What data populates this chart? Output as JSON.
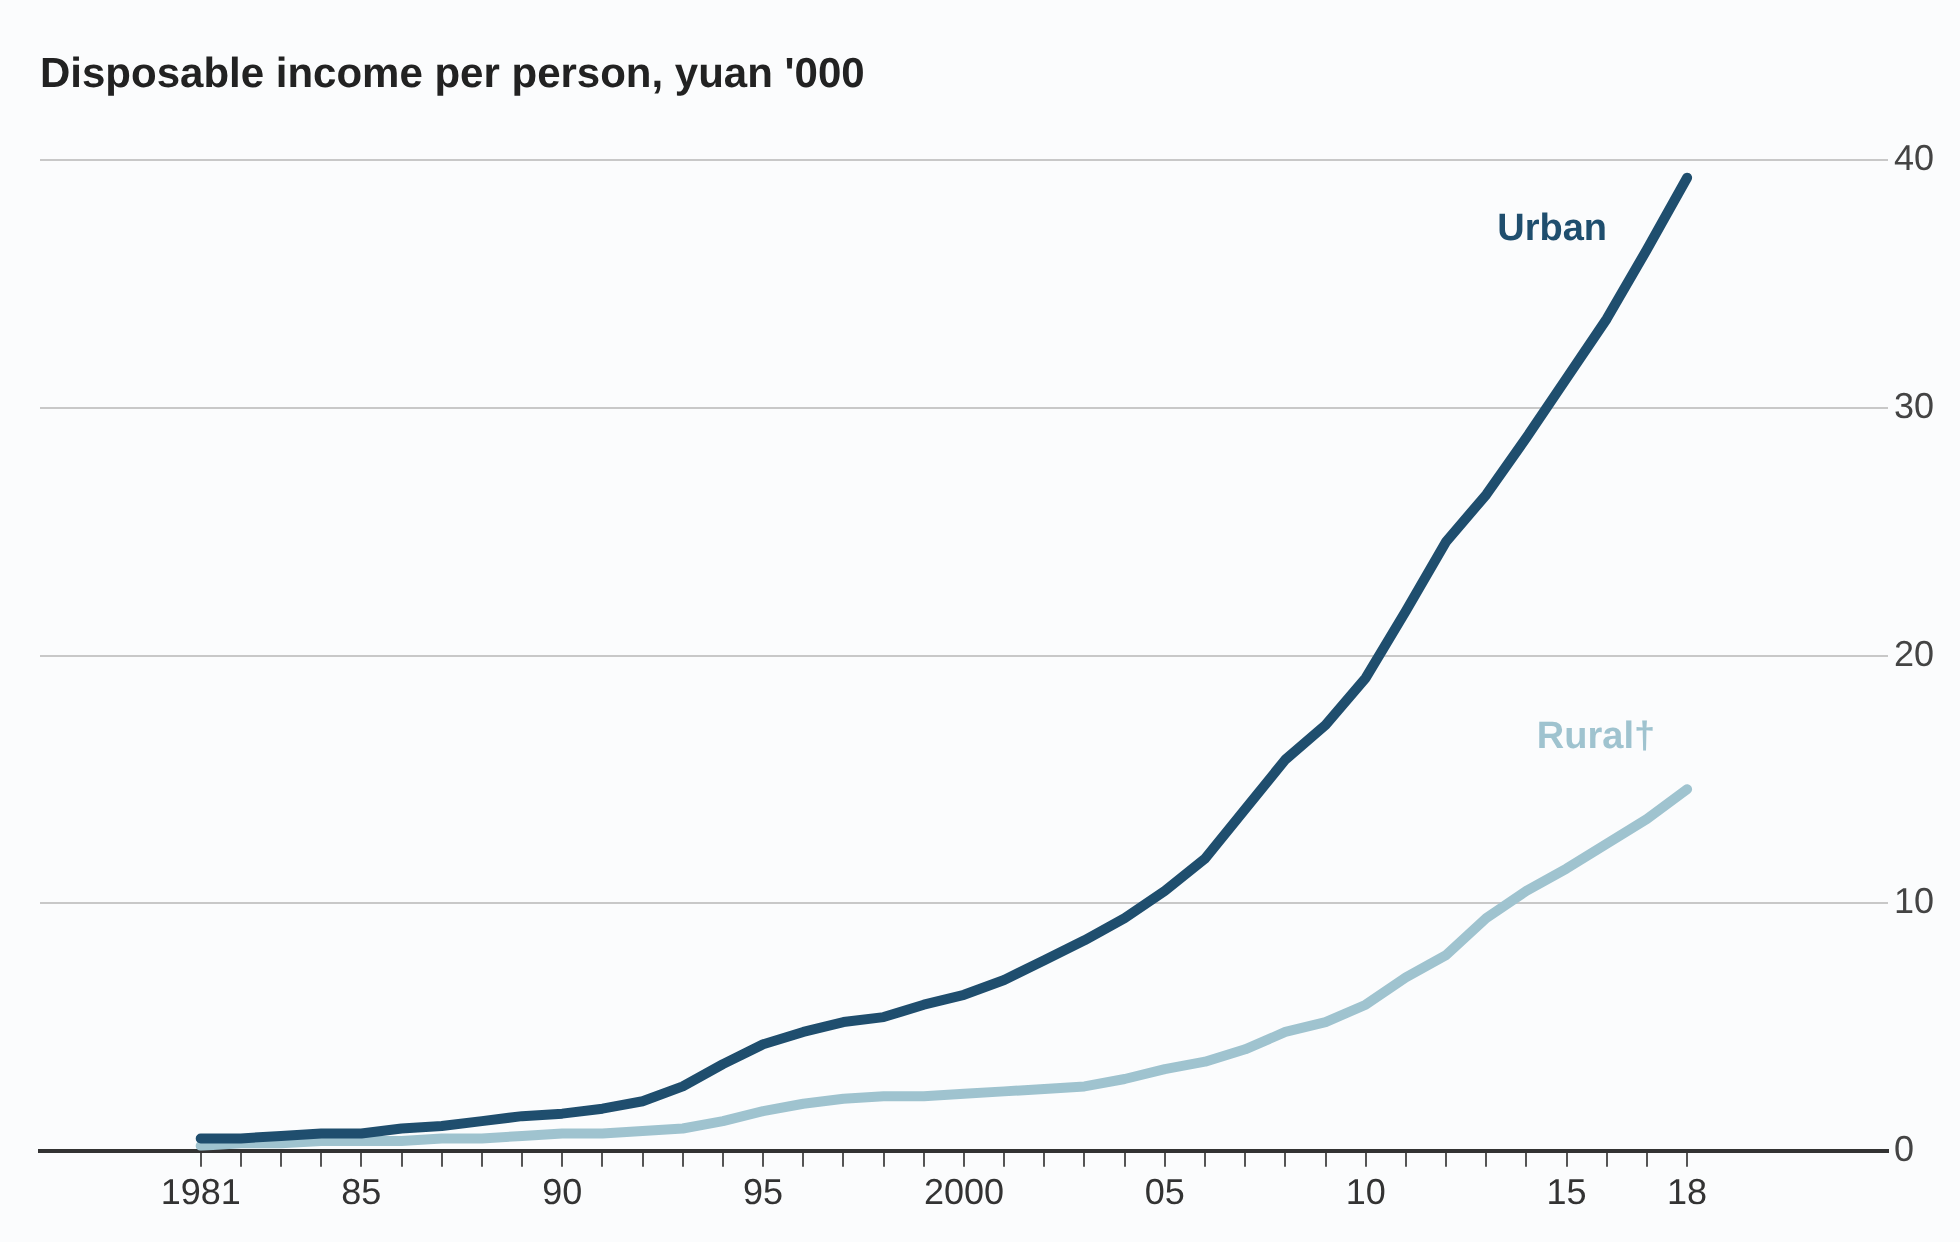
{
  "chart_data": {
    "type": "line",
    "title": "Disposable income per person, yuan '000",
    "x": [
      1981,
      1982,
      1983,
      1984,
      1985,
      1986,
      1987,
      1988,
      1989,
      1990,
      1991,
      1992,
      1993,
      1994,
      1995,
      1996,
      1997,
      1998,
      1999,
      2000,
      2001,
      2002,
      2003,
      2004,
      2005,
      2006,
      2007,
      2008,
      2009,
      2010,
      2011,
      2012,
      2013,
      2014,
      2015,
      2016,
      2017,
      2018
    ],
    "series": [
      {
        "name": "Urban",
        "color": "#1f4e6e",
        "values": [
          0.5,
          0.5,
          0.6,
          0.7,
          0.7,
          0.9,
          1.0,
          1.2,
          1.4,
          1.5,
          1.7,
          2.0,
          2.6,
          3.5,
          4.3,
          4.8,
          5.2,
          5.4,
          5.9,
          6.3,
          6.9,
          7.7,
          8.5,
          9.4,
          10.5,
          11.8,
          13.8,
          15.8,
          17.2,
          19.1,
          21.8,
          24.6,
          26.5,
          28.8,
          31.2,
          33.6,
          36.4,
          39.3
        ]
      },
      {
        "name": "Rural†",
        "color": "#9fc3cf",
        "values": [
          0.2,
          0.3,
          0.3,
          0.4,
          0.4,
          0.4,
          0.5,
          0.5,
          0.6,
          0.7,
          0.7,
          0.8,
          0.9,
          1.2,
          1.6,
          1.9,
          2.1,
          2.2,
          2.2,
          2.3,
          2.4,
          2.5,
          2.6,
          2.9,
          3.3,
          3.6,
          4.1,
          4.8,
          5.2,
          5.9,
          7.0,
          7.9,
          9.4,
          10.5,
          11.4,
          12.4,
          13.4,
          14.6
        ]
      }
    ],
    "xlim": [
      1977,
      2023
    ],
    "xticks": [
      {
        "value": 1981,
        "label": "1981"
      },
      {
        "value": 1982,
        "label": null
      },
      {
        "value": 1983,
        "label": null
      },
      {
        "value": 1984,
        "label": null
      },
      {
        "value": 1985,
        "label": "85"
      },
      {
        "value": 1986,
        "label": null
      },
      {
        "value": 1987,
        "label": null
      },
      {
        "value": 1988,
        "label": null
      },
      {
        "value": 1989,
        "label": null
      },
      {
        "value": 1990,
        "label": "90"
      },
      {
        "value": 1991,
        "label": null
      },
      {
        "value": 1992,
        "label": null
      },
      {
        "value": 1993,
        "label": null
      },
      {
        "value": 1994,
        "label": null
      },
      {
        "value": 1995,
        "label": "95"
      },
      {
        "value": 1996,
        "label": null
      },
      {
        "value": 1997,
        "label": null
      },
      {
        "value": 1998,
        "label": null
      },
      {
        "value": 1999,
        "label": null
      },
      {
        "value": 2000,
        "label": "2000"
      },
      {
        "value": 2001,
        "label": null
      },
      {
        "value": 2002,
        "label": null
      },
      {
        "value": 2003,
        "label": null
      },
      {
        "value": 2004,
        "label": null
      },
      {
        "value": 2005,
        "label": "05"
      },
      {
        "value": 2006,
        "label": null
      },
      {
        "value": 2007,
        "label": null
      },
      {
        "value": 2008,
        "label": null
      },
      {
        "value": 2009,
        "label": null
      },
      {
        "value": 2010,
        "label": "10"
      },
      {
        "value": 2011,
        "label": null
      },
      {
        "value": 2012,
        "label": null
      },
      {
        "value": 2013,
        "label": null
      },
      {
        "value": 2014,
        "label": null
      },
      {
        "value": 2015,
        "label": "15"
      },
      {
        "value": 2016,
        "label": null
      },
      {
        "value": 2017,
        "label": null
      },
      {
        "value": 2018,
        "label": "18"
      }
    ],
    "ylim": [
      0,
      40
    ],
    "yticks": [
      0,
      10,
      20,
      30,
      40
    ],
    "grid": "y",
    "legend": false,
    "marker": "none",
    "line_style": "solid"
  }
}
